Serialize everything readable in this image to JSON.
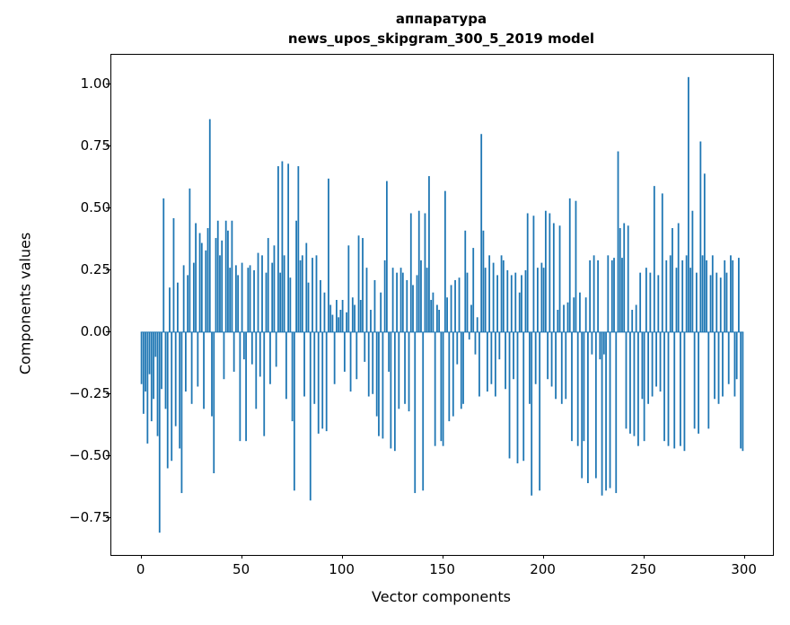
{
  "figure": {
    "title_line1": "аппаратура",
    "title_line2": "news_upos_skipgram_300_5_2019 model",
    "xlabel": "Vector components",
    "ylabel": "Components values"
  },
  "chart_data": {
    "type": "bar",
    "title": "аппаратура — news_upos_skipgram_300_5_2019 model",
    "xlabel": "Vector components",
    "ylabel": "Components values",
    "bar_color": "#1f77b4",
    "grid": false,
    "legend": "none",
    "xlim": [
      -15,
      314
    ],
    "ylim": [
      -0.9,
      1.12
    ],
    "xticks": [
      0,
      50,
      100,
      150,
      200,
      250,
      300
    ],
    "yticks": [
      1.0,
      0.75,
      0.5,
      0.25,
      0.0,
      -0.25,
      -0.5,
      -0.75
    ],
    "x_start": 0,
    "values": [
      -0.21,
      -0.33,
      -0.24,
      -0.45,
      -0.17,
      -0.36,
      -0.27,
      -0.1,
      -0.42,
      -0.81,
      -0.23,
      0.54,
      -0.31,
      -0.55,
      0.18,
      -0.52,
      0.46,
      -0.38,
      0.2,
      -0.47,
      -0.65,
      0.27,
      -0.24,
      0.23,
      0.58,
      -0.29,
      0.28,
      0.44,
      -0.22,
      0.4,
      0.36,
      -0.31,
      0.33,
      0.42,
      0.86,
      -0.34,
      -0.57,
      0.38,
      0.45,
      0.31,
      0.37,
      -0.19,
      0.45,
      0.41,
      0.26,
      0.45,
      -0.16,
      0.27,
      0.23,
      -0.44,
      0.28,
      -0.11,
      -0.44,
      0.26,
      0.27,
      -0.13,
      0.25,
      -0.31,
      0.32,
      -0.18,
      0.31,
      -0.42,
      0.24,
      0.38,
      -0.21,
      0.28,
      0.35,
      -0.14,
      0.67,
      0.24,
      0.69,
      0.31,
      -0.27,
      0.68,
      0.22,
      -0.36,
      -0.64,
      0.45,
      0.67,
      0.29,
      0.31,
      -0.26,
      0.36,
      0.2,
      -0.68,
      0.3,
      -0.29,
      0.31,
      -0.41,
      0.21,
      -0.39,
      0.16,
      -0.4,
      0.62,
      0.11,
      0.07,
      -0.21,
      0.13,
      0.06,
      0.09,
      0.13,
      -0.16,
      0.08,
      0.35,
      -0.24,
      0.14,
      0.11,
      -0.19,
      0.39,
      0.13,
      0.38,
      -0.12,
      0.26,
      -0.26,
      0.09,
      -0.25,
      0.21,
      -0.34,
      -0.42,
      0.16,
      -0.43,
      0.29,
      0.61,
      -0.16,
      -0.47,
      0.26,
      -0.48,
      0.24,
      -0.31,
      0.26,
      0.24,
      -0.29,
      0.21,
      -0.32,
      0.48,
      0.19,
      -0.65,
      0.23,
      0.49,
      0.29,
      -0.64,
      0.48,
      0.26,
      0.63,
      0.13,
      0.16,
      -0.46,
      0.11,
      0.09,
      -0.44,
      -0.46,
      0.57,
      0.14,
      -0.36,
      0.19,
      -0.34,
      0.21,
      -0.13,
      0.22,
      -0.31,
      -0.29,
      0.41,
      0.24,
      -0.03,
      0.11,
      0.34,
      -0.09,
      0.06,
      -0.26,
      0.8,
      0.41,
      0.26,
      -0.24,
      0.31,
      -0.21,
      0.28,
      -0.26,
      0.23,
      -0.11,
      0.31,
      0.29,
      -0.23,
      0.25,
      -0.51,
      0.23,
      -0.19,
      0.24,
      -0.53,
      0.16,
      0.23,
      -0.52,
      0.25,
      0.48,
      -0.29,
      -0.66,
      0.47,
      -0.21,
      0.26,
      -0.64,
      0.28,
      0.26,
      0.49,
      -0.19,
      0.48,
      -0.22,
      0.44,
      -0.27,
      0.09,
      0.43,
      -0.29,
      0.11,
      -0.27,
      0.12,
      0.54,
      -0.44,
      0.14,
      0.53,
      -0.46,
      0.16,
      -0.59,
      -0.44,
      0.14,
      -0.61,
      0.29,
      -0.09,
      0.31,
      -0.59,
      0.29,
      -0.11,
      -0.66,
      -0.09,
      -0.64,
      0.31,
      -0.63,
      0.29,
      0.3,
      -0.65,
      0.73,
      0.42,
      0.3,
      0.44,
      -0.39,
      0.43,
      -0.41,
      0.09,
      -0.42,
      0.11,
      -0.46,
      0.24,
      -0.27,
      -0.44,
      0.26,
      -0.29,
      0.24,
      -0.26,
      0.59,
      -0.22,
      0.23,
      -0.24,
      0.56,
      -0.44,
      0.29,
      -0.46,
      0.31,
      0.42,
      -0.47,
      0.26,
      0.44,
      -0.46,
      0.29,
      -0.48,
      0.31,
      1.03,
      0.26,
      0.49,
      -0.39,
      0.24,
      -0.41,
      0.77,
      0.31,
      0.64,
      0.29,
      -0.39,
      0.23,
      0.31,
      -0.27,
      0.24,
      -0.29,
      0.22,
      -0.26,
      0.29,
      0.24,
      -0.21,
      0.31,
      0.29,
      -0.26,
      -0.19,
      0.3,
      -0.47,
      -0.48
    ]
  }
}
